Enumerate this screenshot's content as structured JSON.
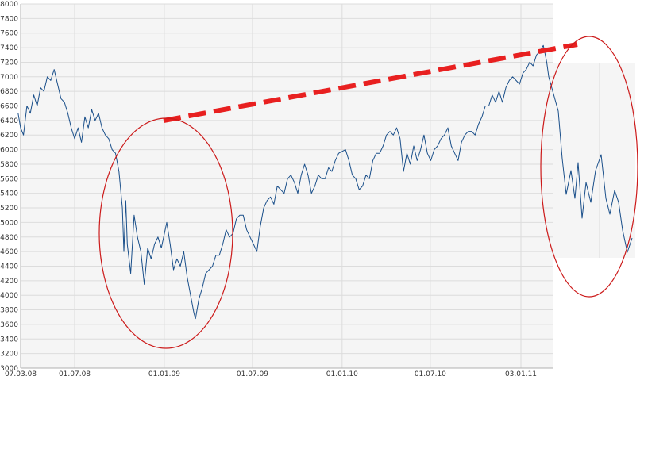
{
  "chart_data": {
    "type": "line",
    "title": "",
    "xlabel": "",
    "ylabel": "",
    "ylim": [
      3000,
      8000
    ],
    "y_ticks": [
      3000,
      3200,
      3400,
      3600,
      3800,
      4000,
      4200,
      4400,
      4600,
      4800,
      5000,
      5200,
      5400,
      5600,
      5800,
      6000,
      6200,
      6400,
      6600,
      6800,
      7000,
      7200,
      7400,
      7600,
      7800,
      8000
    ],
    "x_ticks": [
      {
        "date": "2008-03-07",
        "label": "07.03.08"
      },
      {
        "date": "2008-07-01",
        "label": "01.07.08"
      },
      {
        "date": "2009-01-01",
        "label": "01.01.09"
      },
      {
        "date": "2009-07-01",
        "label": "01.07.09"
      },
      {
        "date": "2010-01-01",
        "label": "01.01.10"
      },
      {
        "date": "2010-07-01",
        "label": "01.07.10"
      },
      {
        "date": "2011-01-03",
        "label": "03.01.11"
      }
    ],
    "xlim": [
      "2008-03-07",
      "2011-03-20"
    ],
    "grid": true,
    "series": [
      {
        "color": "#1a4f8a",
        "points": [
          [
            "2008-03-07",
            6500
          ],
          [
            "2008-03-12",
            6300
          ],
          [
            "2008-03-18",
            6200
          ],
          [
            "2008-03-25",
            6600
          ],
          [
            "2008-04-01",
            6500
          ],
          [
            "2008-04-08",
            6750
          ],
          [
            "2008-04-15",
            6600
          ],
          [
            "2008-04-22",
            6850
          ],
          [
            "2008-04-29",
            6800
          ],
          [
            "2008-05-06",
            7000
          ],
          [
            "2008-05-13",
            6950
          ],
          [
            "2008-05-20",
            7100
          ],
          [
            "2008-05-27",
            6900
          ],
          [
            "2008-06-03",
            6700
          ],
          [
            "2008-06-10",
            6650
          ],
          [
            "2008-06-17",
            6500
          ],
          [
            "2008-06-24",
            6300
          ],
          [
            "2008-07-01",
            6150
          ],
          [
            "2008-07-08",
            6300
          ],
          [
            "2008-07-15",
            6100
          ],
          [
            "2008-07-22",
            6450
          ],
          [
            "2008-07-29",
            6300
          ],
          [
            "2008-08-05",
            6550
          ],
          [
            "2008-08-12",
            6400
          ],
          [
            "2008-08-19",
            6500
          ],
          [
            "2008-08-26",
            6300
          ],
          [
            "2008-09-02",
            6200
          ],
          [
            "2008-09-09",
            6150
          ],
          [
            "2008-09-16",
            6000
          ],
          [
            "2008-09-23",
            5950
          ],
          [
            "2008-09-30",
            5700
          ],
          [
            "2008-10-07",
            5200
          ],
          [
            "2008-10-10",
            4600
          ],
          [
            "2008-10-14",
            5300
          ],
          [
            "2008-10-17",
            4700
          ],
          [
            "2008-10-24",
            4300
          ],
          [
            "2008-10-31",
            5100
          ],
          [
            "2008-11-07",
            4800
          ],
          [
            "2008-11-14",
            4600
          ],
          [
            "2008-11-21",
            4150
          ],
          [
            "2008-11-28",
            4650
          ],
          [
            "2008-12-05",
            4500
          ],
          [
            "2008-12-12",
            4700
          ],
          [
            "2008-12-19",
            4800
          ],
          [
            "2008-12-26",
            4650
          ],
          [
            "2009-01-06",
            5000
          ],
          [
            "2009-01-13",
            4700
          ],
          [
            "2009-01-20",
            4350
          ],
          [
            "2009-01-27",
            4500
          ],
          [
            "2009-02-03",
            4400
          ],
          [
            "2009-02-10",
            4600
          ],
          [
            "2009-02-17",
            4250
          ],
          [
            "2009-02-24",
            4000
          ],
          [
            "2009-03-03",
            3750
          ],
          [
            "2009-03-06",
            3680
          ],
          [
            "2009-03-13",
            3950
          ],
          [
            "2009-03-20",
            4100
          ],
          [
            "2009-03-27",
            4300
          ],
          [
            "2009-04-03",
            4350
          ],
          [
            "2009-04-10",
            4400
          ],
          [
            "2009-04-17",
            4550
          ],
          [
            "2009-04-24",
            4550
          ],
          [
            "2009-05-01",
            4700
          ],
          [
            "2009-05-08",
            4900
          ],
          [
            "2009-05-15",
            4800
          ],
          [
            "2009-05-22",
            4850
          ],
          [
            "2009-05-29",
            5050
          ],
          [
            "2009-06-05",
            5100
          ],
          [
            "2009-06-12",
            5100
          ],
          [
            "2009-06-19",
            4900
          ],
          [
            "2009-06-26",
            4800
          ],
          [
            "2009-07-03",
            4700
          ],
          [
            "2009-07-10",
            4600
          ],
          [
            "2009-07-17",
            4950
          ],
          [
            "2009-07-24",
            5200
          ],
          [
            "2009-07-31",
            5300
          ],
          [
            "2009-08-07",
            5350
          ],
          [
            "2009-08-14",
            5250
          ],
          [
            "2009-08-21",
            5500
          ],
          [
            "2009-08-28",
            5450
          ],
          [
            "2009-09-04",
            5400
          ],
          [
            "2009-09-11",
            5600
          ],
          [
            "2009-09-18",
            5650
          ],
          [
            "2009-09-25",
            5550
          ],
          [
            "2009-10-02",
            5400
          ],
          [
            "2009-10-09",
            5650
          ],
          [
            "2009-10-16",
            5800
          ],
          [
            "2009-10-23",
            5650
          ],
          [
            "2009-10-30",
            5400
          ],
          [
            "2009-11-06",
            5500
          ],
          [
            "2009-11-13",
            5650
          ],
          [
            "2009-11-20",
            5600
          ],
          [
            "2009-11-27",
            5600
          ],
          [
            "2009-12-04",
            5750
          ],
          [
            "2009-12-11",
            5700
          ],
          [
            "2009-12-18",
            5850
          ],
          [
            "2009-12-25",
            5950
          ],
          [
            "2010-01-08",
            6000
          ],
          [
            "2010-01-15",
            5850
          ],
          [
            "2010-01-22",
            5650
          ],
          [
            "2010-01-29",
            5600
          ],
          [
            "2010-02-05",
            5450
          ],
          [
            "2010-02-12",
            5500
          ],
          [
            "2010-02-19",
            5650
          ],
          [
            "2010-02-26",
            5600
          ],
          [
            "2010-03-05",
            5850
          ],
          [
            "2010-03-12",
            5950
          ],
          [
            "2010-03-19",
            5950
          ],
          [
            "2010-03-26",
            6050
          ],
          [
            "2010-04-02",
            6200
          ],
          [
            "2010-04-09",
            6250
          ],
          [
            "2010-04-16",
            6200
          ],
          [
            "2010-04-23",
            6300
          ],
          [
            "2010-04-30",
            6150
          ],
          [
            "2010-05-07",
            5700
          ],
          [
            "2010-05-14",
            5950
          ],
          [
            "2010-05-21",
            5800
          ],
          [
            "2010-05-28",
            6050
          ],
          [
            "2010-06-04",
            5850
          ],
          [
            "2010-06-11",
            6000
          ],
          [
            "2010-06-18",
            6200
          ],
          [
            "2010-06-25",
            5950
          ],
          [
            "2010-07-02",
            5850
          ],
          [
            "2010-07-09",
            6000
          ],
          [
            "2010-07-16",
            6050
          ],
          [
            "2010-07-23",
            6150
          ],
          [
            "2010-07-30",
            6200
          ],
          [
            "2010-08-06",
            6300
          ],
          [
            "2010-08-13",
            6050
          ],
          [
            "2010-08-20",
            5950
          ],
          [
            "2010-08-27",
            5850
          ],
          [
            "2010-09-03",
            6100
          ],
          [
            "2010-09-10",
            6200
          ],
          [
            "2010-09-17",
            6250
          ],
          [
            "2010-09-24",
            6250
          ],
          [
            "2010-10-01",
            6200
          ],
          [
            "2010-10-08",
            6350
          ],
          [
            "2010-10-15",
            6450
          ],
          [
            "2010-10-22",
            6600
          ],
          [
            "2010-10-29",
            6600
          ],
          [
            "2010-11-05",
            6750
          ],
          [
            "2010-11-12",
            6650
          ],
          [
            "2010-11-19",
            6800
          ],
          [
            "2010-11-26",
            6650
          ],
          [
            "2010-12-03",
            6850
          ],
          [
            "2010-12-10",
            6950
          ],
          [
            "2010-12-17",
            7000
          ],
          [
            "2010-12-24",
            6950
          ],
          [
            "2010-12-31",
            6900
          ],
          [
            "2011-01-07",
            7050
          ],
          [
            "2011-01-14",
            7100
          ],
          [
            "2011-01-21",
            7200
          ],
          [
            "2011-01-28",
            7150
          ],
          [
            "2011-02-04",
            7300
          ],
          [
            "2011-02-11",
            7350
          ],
          [
            "2011-02-18",
            7430
          ],
          [
            "2011-02-22",
            7300
          ],
          [
            "2011-02-25",
            7200
          ],
          [
            "2011-03-01",
            7000
          ]
        ]
      }
    ]
  }
}
